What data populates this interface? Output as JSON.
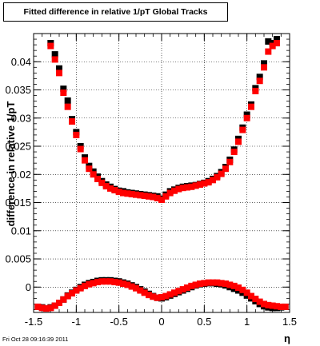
{
  "title": "Fitted difference in relative 1/pT  Global Tracks",
  "timestamp": "Fri Oct 28 09:16:39 2011",
  "chart_data": {
    "type": "scatter",
    "title": "Fitted difference in relative 1/pT  Global Tracks",
    "xlabel": "η",
    "ylabel": "difference in relative 1/pT",
    "xlim": [
      -1.5,
      1.5
    ],
    "ylim": [
      -0.0045,
      0.045
    ],
    "grid": true,
    "x_ticks": [
      "-1.5",
      "-1",
      "-0.5",
      "0",
      "0.5",
      "1",
      "1.5"
    ],
    "y_ticks": [
      "0",
      "0.005",
      "0.01",
      "0.015",
      "0.02",
      "0.025",
      "0.03",
      "0.035",
      "0.04"
    ],
    "series": [
      {
        "color": "#000000",
        "x": [
          -1.3,
          -1.25,
          -1.2,
          -1.15,
          -1.1,
          -1.05,
          -1.0,
          -0.95,
          -0.9,
          -0.85,
          -0.8,
          -0.75,
          -0.7,
          -0.65,
          -0.6,
          -0.55,
          -0.5,
          -0.45,
          -0.4,
          -0.35,
          -0.3,
          -0.25,
          -0.2,
          -0.15,
          -0.1,
          -0.05,
          0.0,
          0.05,
          0.1,
          0.15,
          0.2,
          0.25,
          0.3,
          0.35,
          0.4,
          0.45,
          0.5,
          0.55,
          0.6,
          0.65,
          0.7,
          0.75,
          0.8,
          0.85,
          0.9,
          0.95,
          1.0,
          1.05,
          1.1,
          1.15,
          1.2,
          1.25,
          1.3,
          1.35
        ],
        "y": [
          0.0433,
          0.0413,
          0.0388,
          0.0352,
          0.0331,
          0.0298,
          0.0275,
          0.025,
          0.023,
          0.0215,
          0.0205,
          0.0196,
          0.0188,
          0.0182,
          0.0178,
          0.0174,
          0.0171,
          0.017,
          0.0168,
          0.0167,
          0.0166,
          0.0165,
          0.0164,
          0.0163,
          0.0162,
          0.0161,
          0.0157,
          0.0164,
          0.017,
          0.0173,
          0.0176,
          0.0178,
          0.0179,
          0.018,
          0.0181,
          0.0183,
          0.0185,
          0.0188,
          0.0192,
          0.0197,
          0.0204,
          0.0213,
          0.0226,
          0.0244,
          0.0263,
          0.0283,
          0.0306,
          0.0324,
          0.0353,
          0.0373,
          0.0397,
          0.0436,
          0.0433,
          0.044
        ]
      },
      {
        "color": "#000000",
        "x": [
          -1.45,
          -1.4,
          -1.35,
          -1.3,
          -1.25,
          -1.2,
          -1.15,
          -1.1,
          -1.05,
          -1.0,
          -0.95,
          -0.9,
          -0.85,
          -0.8,
          -0.75,
          -0.7,
          -0.65,
          -0.6,
          -0.55,
          -0.5,
          -0.45,
          -0.4,
          -0.35,
          -0.3,
          -0.25,
          -0.2,
          -0.15,
          -0.1,
          -0.05,
          0.0,
          0.05,
          0.1,
          0.15,
          0.2,
          0.25,
          0.3,
          0.35,
          0.4,
          0.45,
          0.5,
          0.55,
          0.6,
          0.65,
          0.7,
          0.75,
          0.8,
          0.85,
          0.9,
          0.95,
          1.0,
          1.05,
          1.1,
          1.15,
          1.2,
          1.25,
          1.3,
          1.35,
          1.4,
          1.45
        ],
        "y": [
          -0.0035,
          -0.0036,
          -0.0038,
          -0.0036,
          -0.0033,
          -0.0028,
          -0.0022,
          -0.0015,
          -0.001,
          -0.0005,
          0.0,
          0.0004,
          0.0007,
          0.0009,
          0.0011,
          0.0012,
          0.0012,
          0.0012,
          0.0011,
          0.001,
          0.0008,
          0.0006,
          0.0003,
          0.0,
          -0.0004,
          -0.0008,
          -0.0012,
          -0.0016,
          -0.0019,
          -0.002,
          -0.0018,
          -0.0015,
          -0.0012,
          -0.0009,
          -0.0006,
          -0.0003,
          0.0,
          0.0003,
          0.0005,
          0.0006,
          0.0007,
          0.0007,
          0.0006,
          0.0005,
          0.0003,
          0.0,
          -0.0003,
          -0.0006,
          -0.001,
          -0.0015,
          -0.002,
          -0.0025,
          -0.003,
          -0.0034,
          -0.0036,
          -0.0037,
          -0.0037,
          -0.0036,
          -0.0035
        ]
      },
      {
        "color": "#ff0000",
        "x": [
          -1.3,
          -1.25,
          -1.2,
          -1.15,
          -1.1,
          -1.05,
          -1.0,
          -0.95,
          -0.9,
          -0.85,
          -0.8,
          -0.75,
          -0.7,
          -0.65,
          -0.6,
          -0.55,
          -0.5,
          -0.45,
          -0.4,
          -0.35,
          -0.3,
          -0.25,
          -0.2,
          -0.15,
          -0.1,
          -0.05,
          0.0,
          0.05,
          0.1,
          0.15,
          0.2,
          0.25,
          0.3,
          0.35,
          0.4,
          0.45,
          0.5,
          0.55,
          0.6,
          0.65,
          0.7,
          0.75,
          0.8,
          0.85,
          0.9,
          0.95,
          1.0,
          1.05,
          1.1,
          1.15,
          1.2,
          1.25,
          1.3,
          1.35
        ],
        "y": [
          0.0428,
          0.0404,
          0.038,
          0.0345,
          0.032,
          0.0294,
          0.027,
          0.0245,
          0.0225,
          0.021,
          0.02,
          0.0192,
          0.0185,
          0.0179,
          0.0175,
          0.0172,
          0.0169,
          0.0167,
          0.0166,
          0.0165,
          0.0164,
          0.0163,
          0.0162,
          0.0161,
          0.016,
          0.0158,
          0.0155,
          0.0161,
          0.0167,
          0.0171,
          0.0174,
          0.0176,
          0.0177,
          0.0178,
          0.018,
          0.0182,
          0.0184,
          0.0186,
          0.019,
          0.0195,
          0.0201,
          0.021,
          0.0222,
          0.024,
          0.0258,
          0.0279,
          0.03,
          0.032,
          0.0348,
          0.0366,
          0.039,
          0.0418,
          0.0428,
          0.0433
        ]
      },
      {
        "color": "#ff0000",
        "x": [
          -1.45,
          -1.4,
          -1.35,
          -1.3,
          -1.25,
          -1.2,
          -1.15,
          -1.1,
          -1.05,
          -1.0,
          -0.95,
          -0.9,
          -0.85,
          -0.8,
          -0.75,
          -0.7,
          -0.65,
          -0.6,
          -0.55,
          -0.5,
          -0.45,
          -0.4,
          -0.35,
          -0.3,
          -0.25,
          -0.2,
          -0.15,
          -0.1,
          -0.05,
          0.0,
          0.05,
          0.1,
          0.15,
          0.2,
          0.25,
          0.3,
          0.35,
          0.4,
          0.45,
          0.5,
          0.55,
          0.6,
          0.65,
          0.7,
          0.75,
          0.8,
          0.85,
          0.9,
          0.95,
          1.0,
          1.05,
          1.1,
          1.15,
          1.2,
          1.25,
          1.3,
          1.35,
          1.4,
          1.45
        ],
        "y": [
          -0.0035,
          -0.0037,
          -0.0038,
          -0.0037,
          -0.0033,
          -0.0028,
          -0.0022,
          -0.0016,
          -0.0011,
          -0.0006,
          -0.0002,
          0.0002,
          0.0005,
          0.0007,
          0.0009,
          0.001,
          0.001,
          0.001,
          0.0009,
          0.0008,
          0.0006,
          0.0004,
          0.0001,
          -0.0002,
          -0.0006,
          -0.001,
          -0.0014,
          -0.0017,
          -0.0019,
          -0.0018,
          -0.0016,
          -0.0013,
          -0.001,
          -0.0007,
          -0.0004,
          -0.0001,
          0.0002,
          0.0004,
          0.0006,
          0.0007,
          0.0008,
          0.0008,
          0.0008,
          0.0007,
          0.0006,
          0.0004,
          0.0002,
          -0.0001,
          -0.0005,
          -0.001,
          -0.0016,
          -0.0021,
          -0.0026,
          -0.003,
          -0.0032,
          -0.0033,
          -0.0034,
          -0.0035,
          -0.0035
        ]
      }
    ]
  }
}
